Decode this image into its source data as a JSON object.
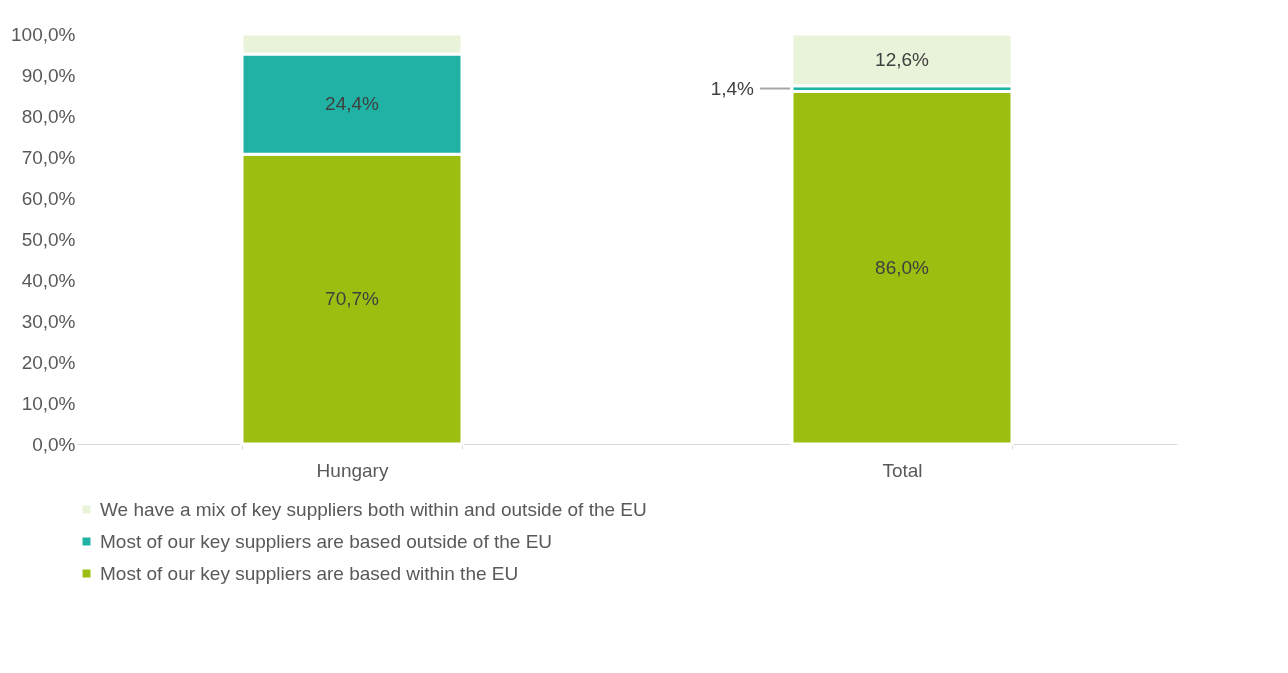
{
  "chart_data": {
    "type": "bar",
    "stacked": true,
    "categories": [
      "Hungary",
      "Total"
    ],
    "series": [
      {
        "name": "Most of our key suppliers are based within the EU",
        "color": "#9bbe10",
        "values": [
          70.7,
          86.0
        ],
        "value_labels": [
          "70,7%",
          "86,0%"
        ]
      },
      {
        "name": "Most of our key suppliers are based outside of the EU",
        "color": "#20b2a4",
        "values": [
          24.4,
          1.4
        ],
        "value_labels": [
          "24,4%",
          "1,4%"
        ]
      },
      {
        "name": "We have a mix of key suppliers both within and outside of the EU",
        "color": "#e9f3d9",
        "values": [
          4.9,
          12.6
        ],
        "value_labels": [
          null,
          "12,6%"
        ]
      }
    ],
    "ylim": [
      0,
      100
    ],
    "yticks": [
      {
        "value": 0,
        "label": "0,0%"
      },
      {
        "value": 10,
        "label": "10,0%"
      },
      {
        "value": 20,
        "label": "20,0%"
      },
      {
        "value": 30,
        "label": "30,0%"
      },
      {
        "value": 40,
        "label": "40,0%"
      },
      {
        "value": 50,
        "label": "50,0%"
      },
      {
        "value": 60,
        "label": "60,0%"
      },
      {
        "value": 70,
        "label": "70,0%"
      },
      {
        "value": 80,
        "label": "80,0%"
      },
      {
        "value": 90,
        "label": "90,0%"
      },
      {
        "value": 100,
        "label": "100,0%"
      }
    ],
    "grid": false,
    "legend": "bottom"
  }
}
